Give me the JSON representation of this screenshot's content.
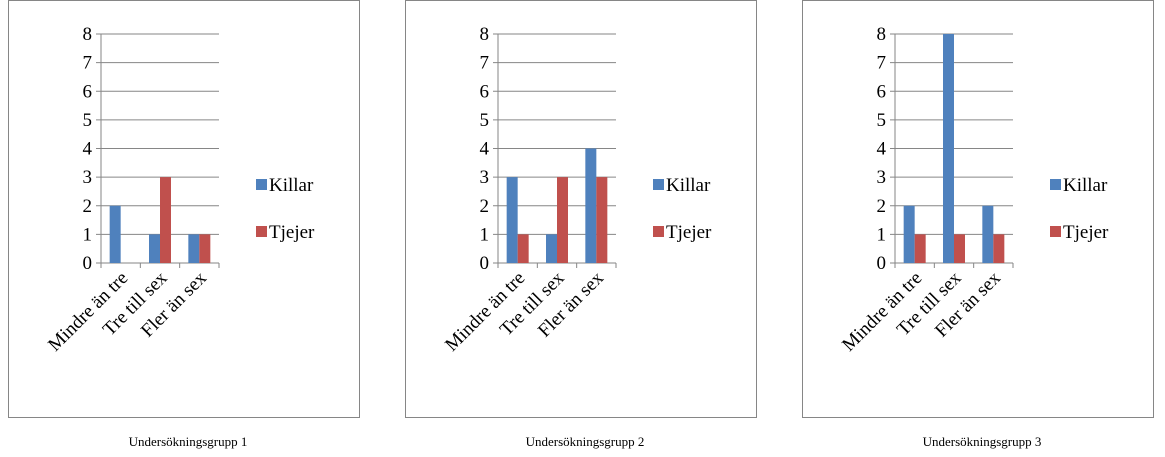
{
  "chart_data": [
    {
      "type": "bar",
      "categories": [
        "Mindre än tre",
        "Tre till sex",
        "Fler än sex"
      ],
      "series": [
        {
          "name": "Killar",
          "values": [
            2,
            1,
            1
          ]
        },
        {
          "name": "Tjejer",
          "values": [
            0,
            3,
            1
          ]
        }
      ],
      "ylim": [
        0,
        8
      ],
      "yticks": [
        "0",
        "1",
        "2",
        "3",
        "4",
        "5",
        "6",
        "7",
        "8"
      ],
      "grid": true,
      "legend": "right",
      "caption": "Undersökningsgrupp 1"
    },
    {
      "type": "bar",
      "categories": [
        "Mindre än tre",
        "Tre till sex",
        "Fler än sex"
      ],
      "series": [
        {
          "name": "Killar",
          "values": [
            3,
            1,
            4
          ]
        },
        {
          "name": "Tjejer",
          "values": [
            1,
            3,
            3
          ]
        }
      ],
      "ylim": [
        0,
        8
      ],
      "yticks": [
        "0",
        "1",
        "2",
        "3",
        "4",
        "5",
        "6",
        "7",
        "8"
      ],
      "grid": true,
      "legend": "right",
      "caption": "Undersökningsgrupp 2"
    },
    {
      "type": "bar",
      "categories": [
        "Mindre än tre",
        "Tre till sex",
        "Fler än sex"
      ],
      "series": [
        {
          "name": "Killar",
          "values": [
            2,
            8,
            2
          ]
        },
        {
          "name": "Tjejer",
          "values": [
            1,
            1,
            1
          ]
        }
      ],
      "ylim": [
        0,
        8
      ],
      "yticks": [
        "0",
        "1",
        "2",
        "3",
        "4",
        "5",
        "6",
        "7",
        "8"
      ],
      "grid": true,
      "legend": "right",
      "caption": "Undersökningsgrupp 3"
    }
  ],
  "colors": {
    "Killar": "#4f81bd",
    "Tjejer": "#c0504d",
    "grid": "#868686",
    "frame": "#868686"
  }
}
